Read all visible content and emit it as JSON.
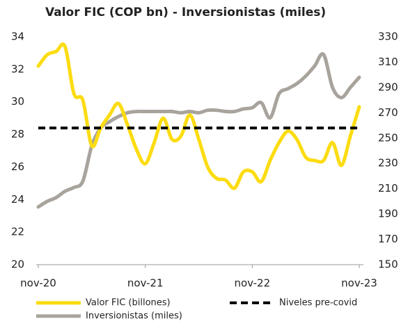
{
  "chart_data": {
    "type": "line",
    "title": "Valor FIC (COP bn) - Inversionistas (miles)",
    "categories": [
      "nov-20",
      null,
      null,
      null,
      null,
      null,
      null,
      null,
      null,
      null,
      null,
      null,
      "nov-21",
      null,
      null,
      null,
      null,
      null,
      null,
      null,
      null,
      null,
      null,
      null,
      "nov-22",
      null,
      null,
      null,
      null,
      null,
      null,
      null,
      null,
      null,
      null,
      null,
      "nov-23"
    ],
    "ylim": [
      20,
      34
    ],
    "yticks": [
      20,
      22,
      24,
      26,
      28,
      30,
      32,
      34
    ],
    "y2lim": [
      150,
      330
    ],
    "y2ticks": [
      150,
      170,
      190,
      210,
      230,
      250,
      270,
      290,
      310,
      330
    ],
    "series": [
      {
        "name": "Valor FIC (billones)",
        "color": "#fcdc12",
        "values": [
          32.2,
          32.9,
          33.1,
          33.4,
          30.5,
          30.1,
          27.3,
          28.4,
          29.2,
          29.9,
          28.6,
          27.1,
          26.2,
          27.5,
          29.0,
          27.7,
          27.9,
          29.2,
          27.7,
          26.0,
          25.3,
          25.2,
          24.7,
          25.7,
          25.7,
          25.1,
          26.4,
          27.5,
          28.2,
          27.7,
          26.6,
          26.4,
          26.4,
          27.5,
          26.1,
          27.9,
          29.7
        ]
      },
      {
        "name": "Niveles pre-covid",
        "color": "#000000",
        "dashed": true,
        "values": [
          28.4,
          28.4,
          28.4,
          28.4,
          28.4,
          28.4,
          28.4,
          28.4,
          28.4,
          28.4,
          28.4,
          28.4,
          28.4,
          28.4,
          28.4,
          28.4,
          28.4,
          28.4,
          28.4,
          28.4,
          28.4,
          28.4,
          28.4,
          28.4,
          28.4,
          28.4,
          28.4,
          28.4,
          28.4,
          28.4,
          28.4,
          28.4,
          28.4,
          28.4,
          28.4,
          28.4,
          28.4
        ]
      },
      {
        "name": "Inversionistas (miles)",
        "color": "#a8a39c",
        "axis": "y2",
        "values": [
          195.6,
          200,
          203,
          208,
          211,
          216,
          244,
          258,
          263,
          267,
          270,
          271,
          271,
          271,
          271,
          271,
          270,
          271,
          270,
          272,
          272,
          271,
          271,
          273,
          274,
          278,
          266,
          285,
          289,
          293,
          299,
          307,
          316,
          290,
          282,
          290,
          298
        ]
      }
    ]
  }
}
